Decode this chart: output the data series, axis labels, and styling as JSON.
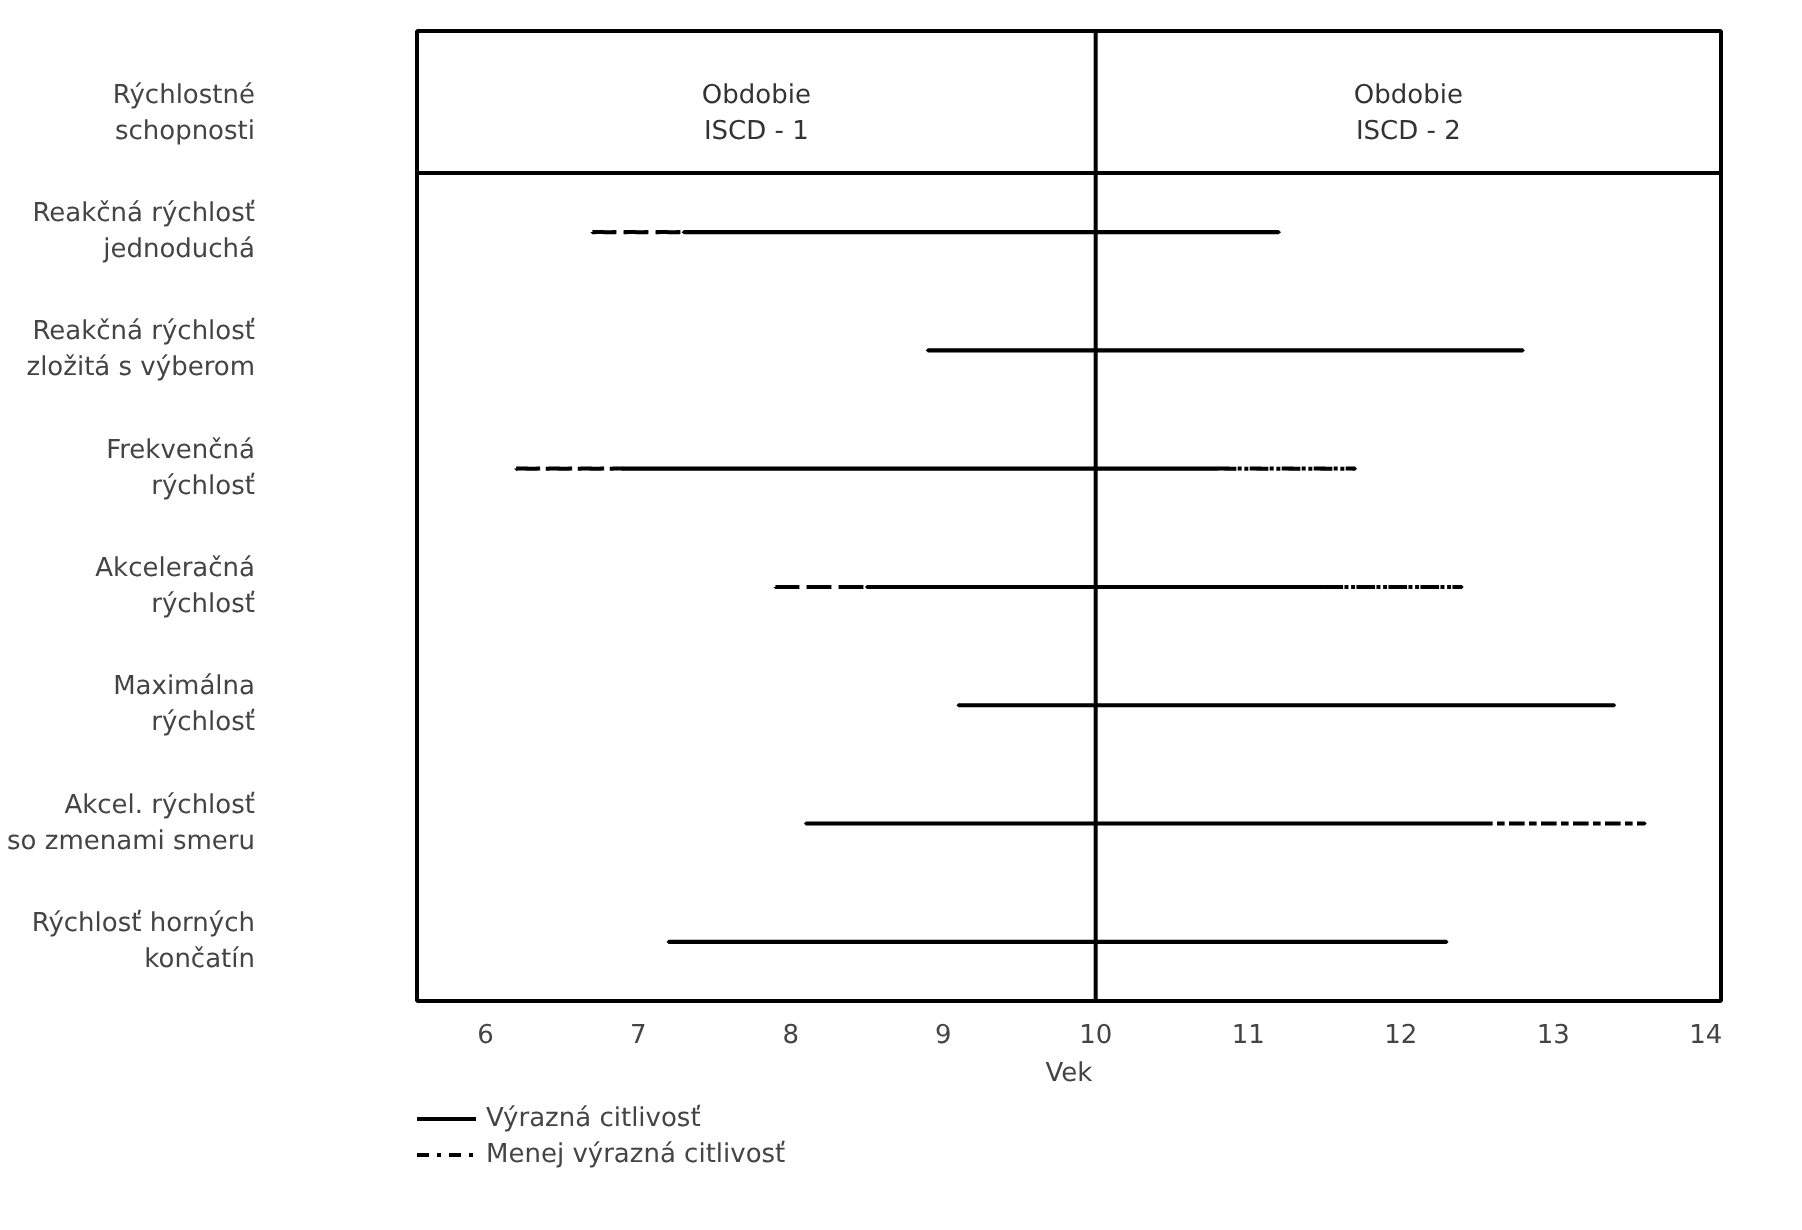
{
  "chart_data": {
    "type": "bar",
    "orientation": "horizontal",
    "ylabel": "Rýchlostné schopnosti",
    "xlabel": "Vek",
    "annotations": [
      "Obdobie ISCD - 1",
      "Obdobie ISCD - 2"
    ],
    "categories": [
      "Reakčná rýchlosť jednoduchá",
      "Reakčná rýchlosť zložitá s výberom",
      "Frekvenčná rýchlosť",
      "Akceleračná rýchlosť",
      "Maximálna rýchlosť",
      "Akcel. rýchlosť so zmenami smeru",
      "Rýchlosť horných končatín"
    ],
    "series": [
      {
        "name": "Menej výrazná citlivosť",
        "color": "#000000",
        "line_style": "dashed",
        "base": [
          6.7,
          null,
          6.2,
          7.9,
          null,
          null,
          null
        ],
        "values": [
          0.6,
          null,
          0.7,
          0.6,
          null,
          null,
          null
        ]
      },
      {
        "name": "Výrazná citlivosť",
        "color": "#000000",
        "line_style": "solid",
        "base": [
          7.3,
          8.9,
          6.9,
          8.5,
          9.1,
          8.1,
          7.2
        ],
        "values": [
          3.9,
          3.9,
          3.9,
          3.0,
          4.3,
          4.4,
          5.1
        ]
      },
      {
        "color": "#000000",
        "line_style": "dashed",
        "base": [
          null,
          null,
          10.8,
          11.5,
          null,
          12.5,
          null
        ],
        "values": [
          null,
          null,
          0.9,
          0.9,
          null,
          1.1,
          null
        ]
      }
    ],
    "xlim": [
      5.55,
      14.1
    ],
    "xticks": [
      6,
      7,
      8,
      9,
      10,
      11,
      12,
      13,
      14
    ],
    "ref_lines": [
      {
        "axis": "x",
        "value": 10,
        "color": "#000000"
      }
    ],
    "grid": false,
    "legend": "bottom left"
  }
}
